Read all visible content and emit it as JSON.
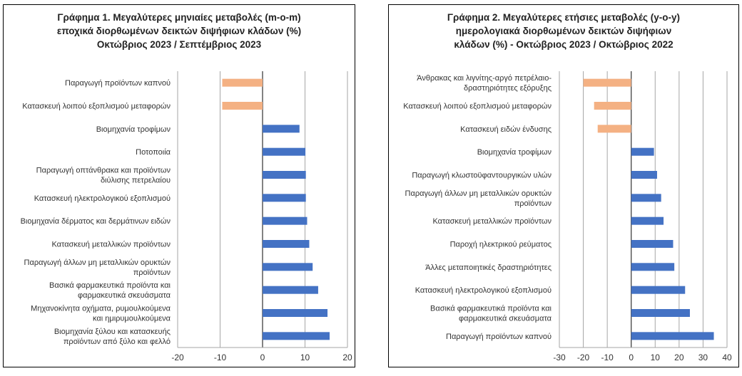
{
  "chart_data": [
    {
      "type": "bar",
      "orientation": "horizontal",
      "title_lines": [
        "Γράφημα 1. Μεγαλύτερες μηνιαίες μεταβολές (m-o-m)",
        "εποχικά διορθωμένων δεικτών διψήφιων κλάδων (%)",
        "Οκτώβριος 2023 / Σεπτέμβριος 2023"
      ],
      "categories": [
        [
          "Παραγωγή προϊόντων καπνού"
        ],
        [
          "Κατασκευή λοιπού εξοπλισμού μεταφορών"
        ],
        [
          "Βιομηχανία τροφίμων"
        ],
        [
          "Ποτοποιία"
        ],
        [
          "Παραγωγή οπτάνθρακα και προϊόντων",
          "διύλισης πετρελαίου"
        ],
        [
          "Κατασκευή ηλεκτρολογικού εξοπλισμού"
        ],
        [
          "Βιομηχανία δέρματος και δερμάτινων ειδών"
        ],
        [
          "Κατασκευή μεταλλικών προϊόντων"
        ],
        [
          "Παραγωγή άλλων μη μεταλλικών ορυκτών",
          "προϊόντων"
        ],
        [
          "Βασικά φαρμακευτικά προϊόντα και",
          "φαρμακευτικά σκευάσματα"
        ],
        [
          "Μηχανοκίνητα οχήματα, ρυμουλκούμενα",
          "και ημιρυμουλκούμενα"
        ],
        [
          "Βιομηχανία ξύλου και κατασκευής",
          "προϊόντων από ξύλο και φελλό"
        ]
      ],
      "values": [
        -9.5,
        -9.5,
        8.7,
        10.1,
        10.2,
        10.2,
        10.5,
        11.0,
        11.8,
        13.1,
        15.3,
        15.8
      ],
      "xlim": [
        -20,
        20
      ],
      "xticks": [
        -20,
        -10,
        0,
        10,
        20
      ],
      "grid": true,
      "colors": {
        "positive": "#4472C4",
        "negative": "#F4B183",
        "grid": "#A6A6A6",
        "zero_line": "#404040"
      }
    },
    {
      "type": "bar",
      "orientation": "horizontal",
      "title_lines": [
        "Γράφημα 2. Μεγαλύτερες ετήσιες μεταβολές (y-o-y)",
        "ημερολογιακά διορθωμένων δεικτών διψήφιων",
        "κλάδων (%) - Οκτώβριος 2023 / Οκτώβριος  2022"
      ],
      "categories": [
        [
          "Άνθρακας και λιγνίτης-αργό πετρέλαιο-",
          "δραστηριότητες εξόρυξης"
        ],
        [
          "Κατασκευή λοιπού εξοπλισμού μεταφορών"
        ],
        [
          "Κατασκευή ειδών ένδυσης"
        ],
        [
          "Βιομηχανία τροφίμων"
        ],
        [
          "Παραγωγή κλωστοϋφαντουργικών υλών"
        ],
        [
          "Παραγωγή άλλων μη μεταλλικών ορυκτών",
          "προϊόντων"
        ],
        [
          "Κατασκευή μεταλλικών προϊόντων"
        ],
        [
          "Παροχή ηλεκτρικού ρεύματος"
        ],
        [
          "Άλλες μεταποιητικές δραστηριότητες"
        ],
        [
          "Κατασκευή ηλεκτρολογικού εξοπλισμού"
        ],
        [
          "Βασικά φαρμακευτικά προϊόντα και",
          "φαρμακευτικά σκευάσματα"
        ],
        [
          "Παραγωγή προϊόντων καπνού"
        ]
      ],
      "values": [
        -20.0,
        -15.5,
        -14.0,
        9.5,
        10.8,
        12.5,
        13.5,
        17.5,
        18.0,
        22.5,
        24.5,
        34.5
      ],
      "xlim": [
        -30,
        40
      ],
      "xticks": [
        -30,
        -20,
        -10,
        0,
        10,
        20,
        30,
        40
      ],
      "grid": true,
      "colors": {
        "positive": "#4472C4",
        "negative": "#F4B183",
        "grid": "#A6A6A6",
        "zero_line": "#404040"
      }
    }
  ]
}
